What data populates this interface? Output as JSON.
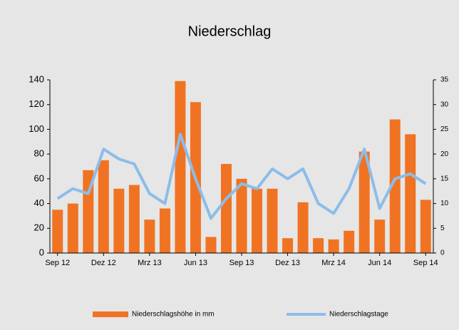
{
  "chart_data": {
    "type": "bar_line",
    "title": "Niederschlag",
    "categories": [
      "Sep 12",
      null,
      null,
      "Dez 12",
      null,
      null,
      "Mrz 13",
      null,
      null,
      "Jun 13",
      null,
      null,
      "Sep 13",
      null,
      null,
      "Dez 13",
      null,
      null,
      "Mrz 14",
      null,
      null,
      "Jun 14",
      null,
      null,
      "Sep 14"
    ],
    "series": [
      {
        "name": "Niederschlagshöhe in mm",
        "type": "bar",
        "color": "#f07323",
        "values": [
          35,
          40,
          67,
          75,
          52,
          55,
          27,
          36,
          139,
          122,
          13,
          72,
          60,
          52,
          52,
          12,
          41,
          12,
          11,
          18,
          82,
          27,
          108,
          96,
          43
        ]
      },
      {
        "name": "Niederschlagstage",
        "type": "line",
        "axis": "y2",
        "color": "#8cbde8",
        "values": [
          11,
          13,
          12,
          21,
          19,
          18,
          12,
          10,
          24,
          15,
          7,
          11,
          14,
          13,
          17,
          15,
          17,
          10,
          8,
          13,
          21,
          9,
          15,
          16,
          14
        ]
      }
    ],
    "ylim": [
      0,
      140
    ],
    "yticks": [
      0,
      20,
      40,
      60,
      80,
      100,
      120,
      140
    ],
    "y2lim": [
      0,
      35
    ],
    "y2ticks": [
      0,
      5,
      10,
      15,
      20,
      25,
      30,
      35
    ]
  }
}
